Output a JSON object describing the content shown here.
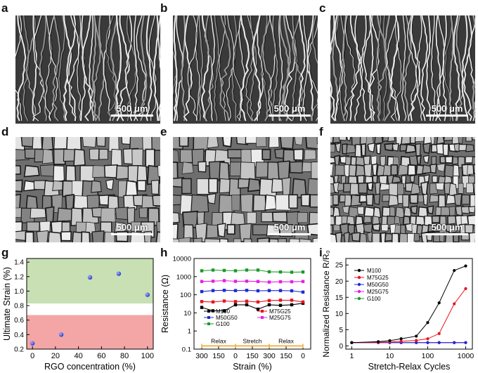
{
  "panels": {
    "a": {
      "label": "a",
      "scale": "500 μm"
    },
    "b": {
      "label": "b",
      "scale": "500 μm"
    },
    "c": {
      "label": "c",
      "scale": "500 μm"
    },
    "d": {
      "label": "d",
      "scale": "500 μm"
    },
    "e": {
      "label": "e",
      "scale": "500 μm"
    },
    "f": {
      "label": "f",
      "scale": "500 μm"
    },
    "g": {
      "label": "g"
    },
    "h": {
      "label": "h"
    },
    "i": {
      "label": "i"
    }
  },
  "chart_data": [
    {
      "id": "g",
      "type": "scatter",
      "xlabel": "RGO concentration (%)",
      "ylabel": "Ultimate Strain (%)",
      "xlim": [
        -5,
        105
      ],
      "ylim": [
        0.2,
        1.45
      ],
      "xticks": [
        0,
        20,
        40,
        60,
        80,
        100
      ],
      "yticks": [
        0.2,
        0.4,
        0.6,
        0.8,
        1.0,
        1.2,
        1.4
      ],
      "x": [
        0,
        25,
        50,
        75,
        100
      ],
      "y": [
        0.28,
        0.4,
        1.19,
        1.24,
        0.95
      ],
      "bands": [
        {
          "from": 0.2,
          "to": 0.67,
          "color": "#f4a6a6"
        },
        {
          "from": 0.83,
          "to": 1.45,
          "color": "#c8e0b4"
        }
      ],
      "marker_color": "#2a3cc8"
    },
    {
      "id": "h",
      "type": "line",
      "xlabel": "Strain (%)",
      "ylabel": "Resistance (Ω)",
      "yscale": "log",
      "ylim": [
        0.1,
        10000
      ],
      "yticks": [
        0.1,
        1,
        10,
        100,
        1000,
        10000
      ],
      "ytick_labels": [
        "0.1",
        "1",
        "10",
        "100",
        "1000",
        "10000"
      ],
      "xtick_labels": [
        "300",
        "150",
        "0",
        "150",
        "300",
        "150",
        "0"
      ],
      "segments": [
        "Relax",
        "Stretch",
        "Relax"
      ],
      "segment_color": "#f5a623",
      "series": [
        {
          "name": "M100",
          "color": "#000000",
          "values": [
            20,
            13,
            13,
            28,
            28,
            16,
            28,
            26,
            28,
            34
          ]
        },
        {
          "name": "M75G25",
          "color": "#e8141e",
          "values": [
            42,
            40,
            45,
            42,
            44,
            40,
            48,
            50,
            50,
            40
          ]
        },
        {
          "name": "M50G50",
          "color": "#1e28d8",
          "values": [
            150,
            170,
            175,
            170,
            175,
            165,
            170,
            170,
            165,
            140
          ]
        },
        {
          "name": "M25G75",
          "color": "#e81ee8",
          "values": [
            540,
            560,
            600,
            550,
            560,
            540,
            500,
            520,
            520,
            540
          ]
        },
        {
          "name": "G100",
          "color": "#1a9a28",
          "values": [
            2100,
            2300,
            2200,
            2100,
            2300,
            2300,
            1850,
            1800,
            1750,
            1800
          ]
        }
      ]
    },
    {
      "id": "i",
      "type": "line",
      "xlabel": "Stretch-Relax Cycles",
      "ylabel": "Normalized Resistance R/R₀",
      "xscale": "log",
      "xlim": [
        0.7,
        1500
      ],
      "ylim": [
        -1,
        27
      ],
      "xticks": [
        1,
        10,
        100,
        1000
      ],
      "yticks": [
        0,
        5,
        10,
        15,
        20,
        25
      ],
      "x": [
        1,
        5,
        10,
        20,
        50,
        100,
        200,
        500,
        1000
      ],
      "series": [
        {
          "name": "M100",
          "color": "#000000",
          "values": [
            1,
            1.3,
            1.6,
            2.2,
            3.0,
            7.2,
            13.3,
            23.3,
            24.7
          ]
        },
        {
          "name": "M75G25",
          "color": "#e8141e",
          "values": [
            1,
            1.1,
            1.2,
            1.4,
            1.7,
            2.2,
            3.8,
            13.0,
            17.7
          ]
        },
        {
          "name": "M50G50",
          "color": "#1e28d8",
          "values": [
            1,
            1,
            1,
            1,
            1,
            1,
            1,
            1,
            1
          ]
        },
        {
          "name": "M25G75",
          "color": "#e81ee8",
          "values": [
            1,
            1,
            1,
            1,
            1,
            1,
            1,
            1,
            1
          ]
        },
        {
          "name": "G100",
          "color": "#1a9a28",
          "values": [
            1,
            1,
            1,
            1,
            1,
            1,
            1,
            1,
            1
          ]
        }
      ]
    }
  ]
}
